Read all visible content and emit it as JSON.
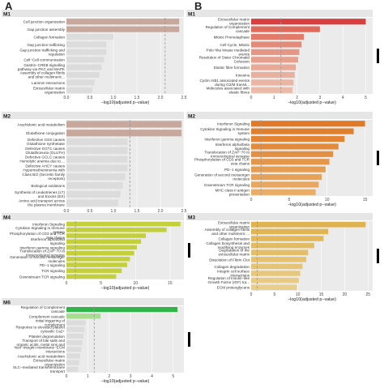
{
  "panels": {
    "a": "A",
    "b": "B"
  },
  "chart_data": [
    {
      "type": "bar",
      "orientation": "horizontal",
      "title": "M1",
      "xlabel": "−log10(adjusted p−value)",
      "xticks": [
        "0.0",
        "0.5",
        "1.0",
        "1.5",
        "2.0",
        "2.5"
      ],
      "xlim": [
        0,
        2.5
      ],
      "threshold": 2.1,
      "colors": [
        "#c8a79c",
        "#c8a79c",
        "#dcdcdc",
        "#dcdcdc",
        "#dcdcdc",
        "#dcdcdc",
        "#dcdcdc",
        "#dcdcdc",
        "#dcdcdc",
        "#dcdcdc"
      ],
      "categories": [
        "Cell junction organization",
        "Gap junction assembly",
        "Collagen formation",
        "Gap junction trafficking",
        "Gap junction trafficking and regulation",
        "Cell−Cell communication",
        "Gastrin−CREB signalling pathway via PKC and MAPK",
        "Assembly of collagen fibrils and other multimeric...",
        "Laminin interactions",
        "Extracellular matrix organization"
      ],
      "values": [
        2.4,
        2.4,
        1.0,
        0.85,
        0.85,
        0.8,
        0.75,
        0.7,
        0.6,
        0.55
      ]
    },
    {
      "type": "bar",
      "orientation": "horizontal",
      "title": "M2",
      "xlabel": "−log10(adjusted p−value)",
      "xticks": [
        "0.0",
        "0.5",
        "1.0",
        "1.5",
        "2.0",
        "2.5"
      ],
      "xlim": [
        0,
        2.5
      ],
      "threshold": 1.35,
      "colors": [
        "#c8a79c",
        "#c8a79c",
        "#dcdcdc",
        "#dcdcdc",
        "#dcdcdc",
        "#dcdcdc",
        "#dcdcdc",
        "#dcdcdc",
        "#dcdcdc",
        "#dcdcdc"
      ],
      "categories": [
        "Arachidonic acid metabolism",
        "Glutathione conjugation",
        "Defective GSS causes Glutathione synthetase defic...",
        "Defective GGT1 causes Glutathionuria (GLUTH)",
        "Defective GCLC causes Hemolytic anemia due to ...",
        "Defective AHCY causes Hypermethioninemia with S−ad...",
        "Class B/2 (Secretin family receptors)",
        "Biological oxidations",
        "Synthesis of Leukotrienes (LT) and Eoxins (EX)",
        "Amino acid transport across the plasma membrane"
      ],
      "values": [
        2.45,
        2.45,
        1.3,
        1.3,
        1.3,
        1.3,
        1.25,
        1.2,
        1.15,
        1.1
      ]
    },
    {
      "type": "bar",
      "orientation": "horizontal",
      "title": "M4",
      "xlabel": "−log10(adjusted p−value)",
      "xticks": [
        "0",
        "5",
        "10",
        "15"
      ],
      "xlim": [
        0,
        17
      ],
      "threshold": 1.3,
      "colors": [
        "#c4cf3c",
        "#c4cf3c",
        "#c4cf3c",
        "#c4cf3c",
        "#c4cf3c",
        "#c4cf3c",
        "#c4cf3c",
        "#c4cf3c",
        "#c4cf3c",
        "#c4cf3c"
      ],
      "categories": [
        "Interferon Signaling",
        "Cytokine Signaling in Immune system",
        "Phosphorylation of CD3 and TCR zeta chains",
        "Interferon alpha/beta signaling",
        "Interferon gamma signaling",
        "Translocation of ZAP−70 to Immunological synapse",
        "Generation of second messenger molecules",
        "PD−1 signaling",
        "TCR signaling",
        "Downstream TCR signaling"
      ],
      "values": [
        16.5,
        14.5,
        11.5,
        10.8,
        10.2,
        9.8,
        9.2,
        8.8,
        8.0,
        7.2
      ]
    },
    {
      "type": "bar",
      "orientation": "horizontal",
      "title": "M6",
      "xlabel": "−log10(adjusted p−value)",
      "xticks": [
        "0",
        "1",
        "2",
        "3",
        "4",
        "5"
      ],
      "xlim": [
        0,
        5.5
      ],
      "threshold": 1.3,
      "colors": [
        "#33b44a",
        "#a8dc90",
        "#dcdcdc",
        "#dcdcdc",
        "#dcdcdc",
        "#dcdcdc",
        "#dcdcdc",
        "#dcdcdc",
        "#dcdcdc",
        "#dcdcdc"
      ],
      "categories": [
        "Regulation of Complement cascade",
        "Complement cascade",
        "Initial triggering of complement",
        "Response to elevated platelet cytosolic Ca2+",
        "Platelet degranulation",
        "Transport of bile salts and organic acids, metal ions and amine compounds",
        "Non−integrin membrane−ECM interactions",
        "Arachidonic acid metabolism",
        "Extracellular matrix organization",
        "SLC−mediated transmembrane transport"
      ],
      "values": [
        5.2,
        1.6,
        0.9,
        0.85,
        0.8,
        0.75,
        0.7,
        0.65,
        0.6,
        0.55
      ]
    },
    {
      "type": "bar",
      "orientation": "horizontal",
      "title": "M1",
      "xlabel": "−log10(adjusted p−value)",
      "xticks": [
        "0",
        "1",
        "2",
        "3",
        "4",
        "5"
      ],
      "xlim": [
        0,
        5.3
      ],
      "threshold": 1.3,
      "colors": [
        "#d83f3f",
        "#de6a5c",
        "#e27b6a",
        "#e48a78",
        "#e69684",
        "#e8a08e",
        "#e9a997",
        "#eab09e",
        "#ebb5a4",
        "#ecbaa9"
      ],
      "categories": [
        "Extracellular matrix organization",
        "Regulation of Complement cascade",
        "Mitotic Prometaphase",
        "Cell Cycle, Mitotic",
        "Polo−like kinase mediated events",
        "Resolution of Sister Chromatid Cohesion",
        "Elastic fibre formation",
        "Kinesins",
        "Cyclin A/B1 associated events during G2/M transit...",
        "Molecules associated with elastic fibres"
      ],
      "values": [
        5.0,
        3.0,
        2.3,
        2.2,
        2.1,
        2.05,
        1.95,
        1.9,
        1.85,
        1.8
      ]
    },
    {
      "type": "bar",
      "orientation": "horizontal",
      "title": "M2",
      "xlabel": "−log10(adjusted p−value)",
      "xticks": [
        "0",
        "5",
        "10",
        "15"
      ],
      "xlim": [
        0,
        16
      ],
      "threshold": 1.3,
      "colors": [
        "#e07a28",
        "#e07f2e",
        "#e28434",
        "#e38a3b",
        "#e49042",
        "#e59649",
        "#e69c51",
        "#e7a258",
        "#e8a760",
        "#e9ad68"
      ],
      "categories": [
        "Interferon Signaling",
        "Cytokine Signaling in Immune system",
        "Interferon gamma signaling",
        "Interferon alpha/beta signaling",
        "Translocation of ZAP−70 to Immunological synapse",
        "Phosphorylation of CD3 and TCR zeta chains",
        "PD−1 signaling",
        "Generation of second messenger molecules",
        "Downstream TCR signaling",
        "MHC class II antigen presentation"
      ],
      "values": [
        15.0,
        13.5,
        12.3,
        11.5,
        10.8,
        10.3,
        9.8,
        9.3,
        8.9,
        8.5
      ]
    },
    {
      "type": "bar",
      "orientation": "horizontal",
      "title": "M3",
      "xlabel": "−log10(adjusted p−value)",
      "xticks": [
        "0",
        "5",
        "10",
        "15",
        "20",
        "25"
      ],
      "xlim": [
        0,
        26
      ],
      "threshold": 1.3,
      "colors": [
        "#e0b24e",
        "#e1b554",
        "#e2b85b",
        "#e3bb62",
        "#e4be69",
        "#e5c170",
        "#e6c477",
        "#e7c77e",
        "#e8ca85",
        "#e9cd8c"
      ],
      "categories": [
        "Extracellular matrix organization",
        "Assembly of collagen fibrils and other multimeric ...",
        "Collagen formation",
        "Collagen biosynthesis and modifying enzymes",
        "Degradation of the extracellular matrix",
        "Dissolution of Fibrin Clot",
        "Collagen degradation",
        "Integrin cell surface interactions",
        "Regulation of Insulin−like Growth Factor (IGF) tra...",
        "ECM proteoglycans"
      ],
      "values": [
        24.5,
        16.5,
        15.5,
        13.5,
        12.2,
        11.8,
        11.0,
        10.5,
        10.2,
        9.8
      ]
    }
  ]
}
